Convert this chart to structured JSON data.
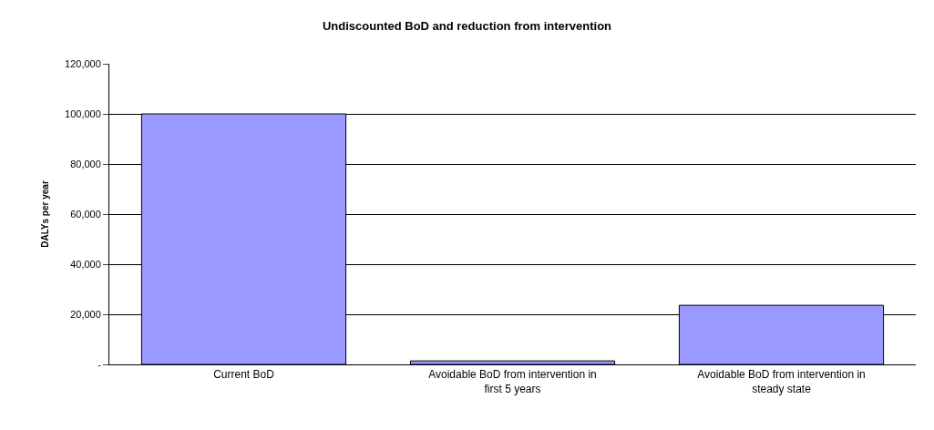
{
  "chart_data": {
    "type": "bar",
    "title": "Undiscounted BoD and reduction from intervention",
    "ylabel": "DALYs per year",
    "categories": [
      "Current BoD",
      "Avoidable BoD from intervention in first 5 years",
      "Avoidable BoD from intervention in steady state"
    ],
    "values": [
      100000,
      1400,
      23600
    ],
    "color": "#9999ff",
    "ylim": [
      0,
      120000
    ],
    "yticks": [
      {
        "value": 0,
        "label": "-"
      },
      {
        "value": 20000,
        "label": "20,000"
      },
      {
        "value": 40000,
        "label": "40,000"
      },
      {
        "value": 60000,
        "label": "60,000"
      },
      {
        "value": 80000,
        "label": "80,000"
      },
      {
        "value": 100000,
        "label": "100,000"
      },
      {
        "value": 120000,
        "label": "120,000"
      }
    ],
    "grid": "y",
    "legend": false
  }
}
